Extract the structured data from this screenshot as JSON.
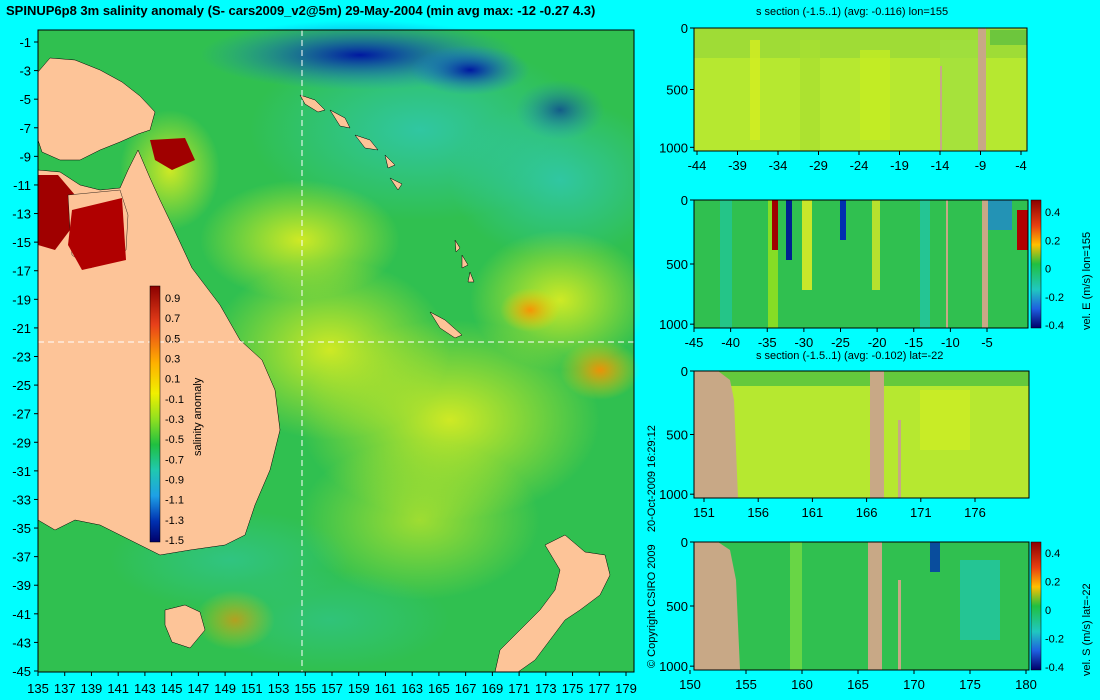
{
  "header": {
    "title": "SPINUP6p8 3m salinity anomaly (S- cars2009_v2@5m) 29-May-2004 (min avg max: -12 -0.27 4.3)"
  },
  "map": {
    "lon_ticks": [
      "135",
      "137",
      "139",
      "141",
      "143",
      "145",
      "147",
      "149",
      "151",
      "153",
      "155",
      "157",
      "159",
      "161",
      "163",
      "165",
      "167",
      "169",
      "171",
      "173",
      "175",
      "177",
      "179"
    ],
    "lat_ticks": [
      "-1",
      "-3",
      "-5",
      "-7",
      "-9",
      "-11",
      "-13",
      "-15",
      "-17",
      "-19",
      "-21",
      "-23",
      "-25",
      "-27",
      "-29",
      "-31",
      "-33",
      "-35",
      "-37",
      "-39",
      "-41",
      "-43",
      "-45"
    ],
    "colorbar": {
      "label": "salinity anomaly",
      "ticks": [
        "0.9",
        "0.7",
        "0.5",
        "0.3",
        "0.1",
        "-0.1",
        "-0.3",
        "-0.5",
        "-0.7",
        "-0.9",
        "-1.1",
        "-1.3",
        "-1.5"
      ]
    },
    "section_lon": "155",
    "section_lat": "-22"
  },
  "copyright": {
    "date": "20-Oct-2009 16:29:12",
    "text": "© Copyright CSIRO 2009"
  },
  "panels": [
    {
      "title": "s section (-1.5..1) (avg: -0.116) lon=155",
      "y_ticks": [
        "0",
        "500",
        "1000"
      ],
      "x_ticks": [
        "-44",
        "-39",
        "-34",
        "-29",
        "-24",
        "-19",
        "-14",
        "-9",
        "-4"
      ]
    },
    {
      "title": "",
      "y_ticks": [
        "0",
        "500",
        "1000"
      ],
      "x_ticks": [
        "-45",
        "-40",
        "-35",
        "-30",
        "-25",
        "-20",
        "-15",
        "-10",
        "-5"
      ],
      "colorbar_ticks": [
        "0.4",
        "0.2",
        "0",
        "-0.2",
        "-0.4"
      ],
      "colorbar_label": "vel. E (m/s) lon=155"
    },
    {
      "title": "s section (-1.5..1) (avg: -0.102) lat=-22",
      "y_ticks": [
        "0",
        "500",
        "1000"
      ],
      "x_ticks": [
        "151",
        "156",
        "161",
        "166",
        "171",
        "176"
      ]
    },
    {
      "title": "",
      "y_ticks": [
        "0",
        "500",
        "1000"
      ],
      "x_ticks": [
        "150",
        "155",
        "160",
        "165",
        "170",
        "175",
        "180"
      ],
      "colorbar_ticks": [
        "0.4",
        "0.2",
        "0",
        "-0.2",
        "-0.4"
      ],
      "colorbar_label": "vel. S (m/s) lat=-22"
    }
  ]
}
